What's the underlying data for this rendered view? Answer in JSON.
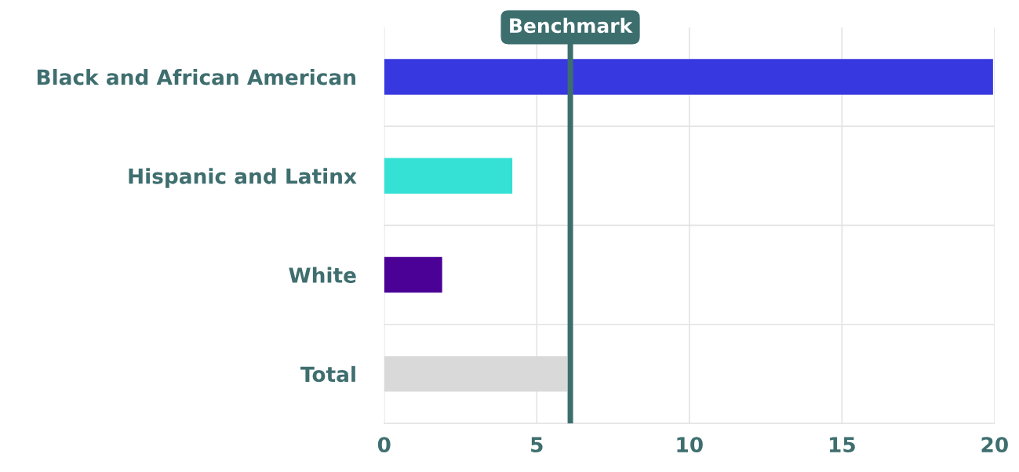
{
  "chart_data": {
    "type": "bar",
    "orientation": "horizontal",
    "categories": [
      "Black and African American",
      "Hispanic and Latinx",
      "White",
      "Total"
    ],
    "values": [
      19.95,
      4.2,
      1.9,
      6.0
    ],
    "colors": [
      "#3838e0",
      "#35e0d4",
      "#4b0096",
      "#d9d9d9"
    ],
    "xlim": [
      0,
      20
    ],
    "xticks": [
      0,
      5,
      10,
      15,
      20
    ],
    "grid": true,
    "ref_lines": [
      {
        "axis": "x",
        "value": 6.1,
        "label": "Benchmark",
        "color": "#3d6e6e"
      }
    ]
  }
}
